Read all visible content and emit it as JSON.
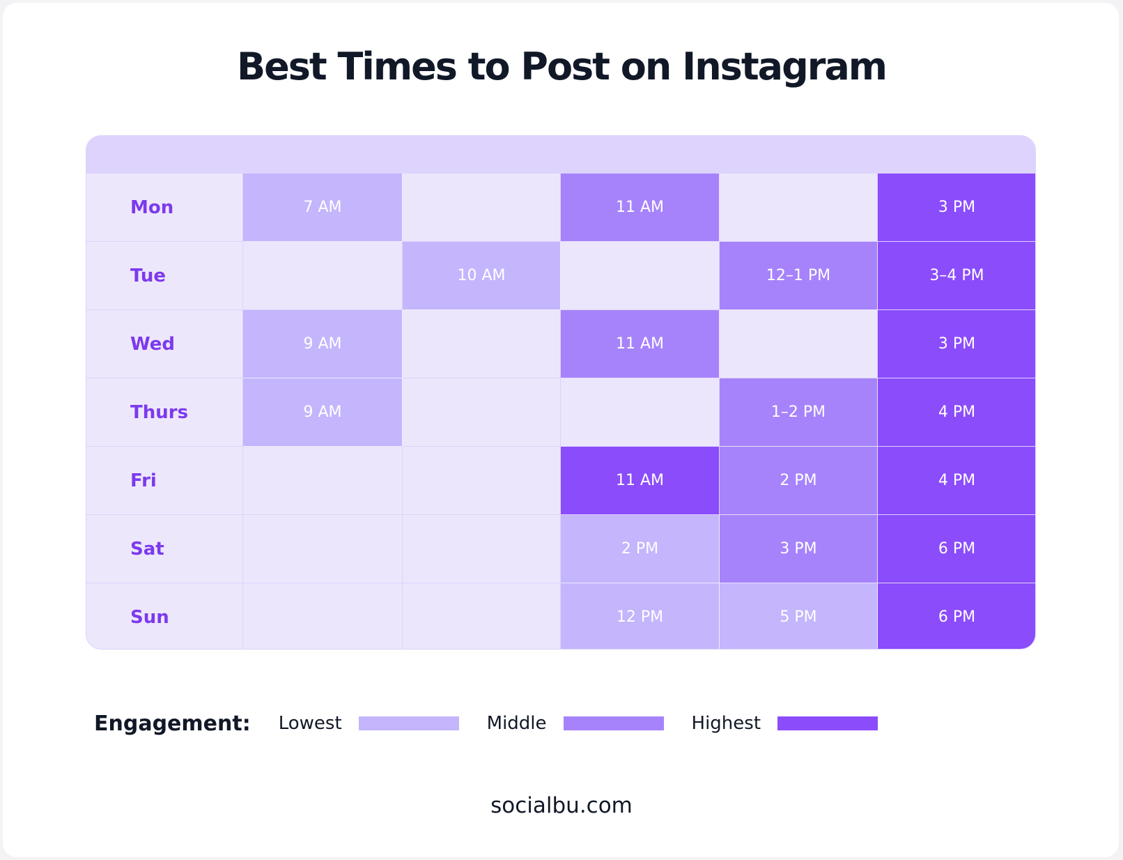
{
  "header": {
    "title": "Best Times to Post on Instagram"
  },
  "table": {
    "rows": [
      {
        "day": "Mon",
        "cells": [
          {
            "text": "7 AM",
            "color": "#c4b5fd"
          },
          null,
          {
            "text": "11 AM",
            "color": "#a683fb"
          },
          null,
          {
            "text": "3 PM",
            "color": "#8b4cfb"
          }
        ]
      },
      {
        "day": "Tue",
        "cells": [
          null,
          {
            "text": "10 AM",
            "color": "#c4b5fd"
          },
          null,
          {
            "text": "12–1 PM",
            "color": "#a683fb"
          },
          {
            "text": "3–4 PM",
            "color": "#8b4cfb"
          }
        ]
      },
      {
        "day": "Wed",
        "cells": [
          {
            "text": "9 AM",
            "color": "#c4b5fd"
          },
          null,
          {
            "text": "11 AM",
            "color": "#a683fb"
          },
          null,
          {
            "text": "3 PM",
            "color": "#8b4cfb"
          }
        ]
      },
      {
        "day": "Thurs",
        "cells": [
          {
            "text": "9 AM",
            "color": "#c4b5fd"
          },
          null,
          null,
          {
            "text": "1–2 PM",
            "color": "#a683fb"
          },
          {
            "text": "4 PM",
            "color": "#8b4cfb"
          }
        ]
      },
      {
        "day": "Fri",
        "cells": [
          null,
          null,
          {
            "text": "11 AM",
            "color": "#8b4cfb"
          },
          {
            "text": "2 PM",
            "color": "#a683fb"
          },
          {
            "text": "4 PM",
            "color": "#8b4cfb"
          }
        ]
      },
      {
        "day": "Sat",
        "cells": [
          null,
          null,
          {
            "text": "2 PM",
            "color": "#c4b5fd"
          },
          {
            "text": "3 PM",
            "color": "#a683fb"
          },
          {
            "text": "6 PM",
            "color": "#8b4cfb"
          }
        ]
      },
      {
        "day": "Sun",
        "cells": [
          null,
          null,
          {
            "text": "12 PM",
            "color": "#c4b5fd"
          },
          {
            "text": "5 PM",
            "color": "#c4b5fd"
          },
          {
            "text": "6 PM",
            "color": "#8b4cfb"
          }
        ]
      }
    ]
  },
  "legend": {
    "title": "Engagement:",
    "items": [
      {
        "label": "Lowest",
        "color": "#c4b5fd"
      },
      {
        "label": "Middle",
        "color": "#a683fb"
      },
      {
        "label": "Highest",
        "color": "#8b4cfb"
      }
    ]
  },
  "footer": {
    "text": "socialbu.com"
  }
}
